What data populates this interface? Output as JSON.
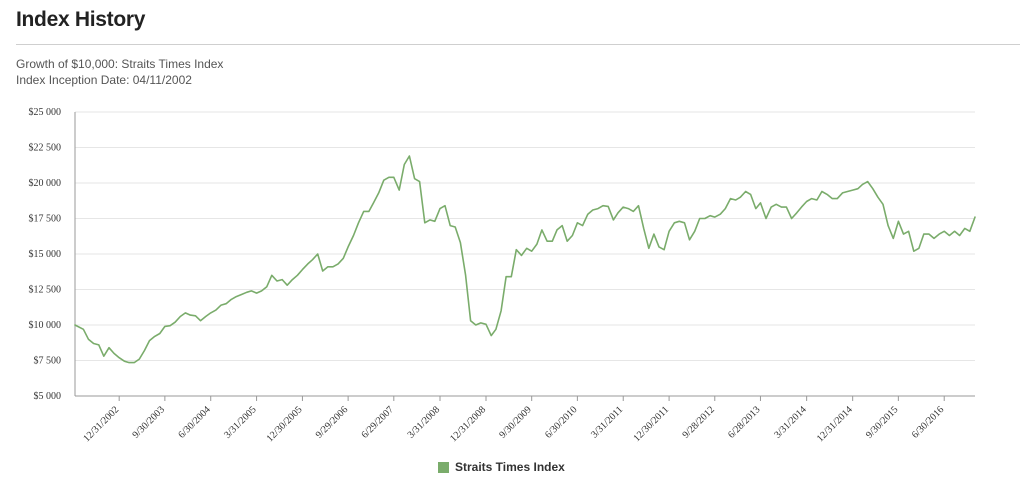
{
  "header": {
    "title": "Index History",
    "subtitle": "Growth of $10,000: Straits Times Index",
    "inception": "Index Inception Date: 04/11/2002"
  },
  "colors": {
    "series": "#7aac6b",
    "grid": "#e6e6e6",
    "axis": "#999999"
  },
  "chart_data": {
    "type": "line",
    "title": "",
    "xlabel": "",
    "ylabel": "",
    "ylim": [
      5000,
      25000
    ],
    "yticks": [
      5000,
      7500,
      10000,
      12500,
      15000,
      17500,
      20000,
      22500,
      25000
    ],
    "ytick_labels": [
      "$5 000",
      "$7 500",
      "$10 000",
      "$12 500",
      "$15 000",
      "$17 500",
      "$20 000",
      "$22 500",
      "$25 000"
    ],
    "xtick_labels": [
      "12/31/2002",
      "9/30/2003",
      "6/30/2004",
      "3/31/2005",
      "12/30/2005",
      "9/29/2006",
      "6/29/2007",
      "3/31/2008",
      "12/31/2008",
      "9/30/2009",
      "6/30/2010",
      "3/31/2011",
      "12/30/2011",
      "9/28/2012",
      "6/28/2013",
      "3/31/2014",
      "12/31/2014",
      "9/30/2015",
      "6/30/2016"
    ],
    "xtick_dates": [
      "2002-12-31",
      "2003-09-30",
      "2004-06-30",
      "2005-03-31",
      "2005-12-30",
      "2006-09-29",
      "2007-06-29",
      "2008-03-31",
      "2008-12-31",
      "2009-09-30",
      "2010-06-30",
      "2011-03-31",
      "2011-12-30",
      "2012-09-28",
      "2013-06-28",
      "2014-03-31",
      "2014-12-31",
      "2015-09-30",
      "2016-06-30"
    ],
    "grid": true,
    "legend": "bottom-center",
    "series": [
      {
        "name": "Straits Times Index",
        "points": [
          [
            "2002-04-11",
            10000
          ],
          [
            "2002-05-31",
            9700
          ],
          [
            "2002-06-30",
            9000
          ],
          [
            "2002-07-31",
            8700
          ],
          [
            "2002-08-31",
            8600
          ],
          [
            "2002-09-30",
            7800
          ],
          [
            "2002-10-31",
            8400
          ],
          [
            "2002-11-30",
            8000
          ],
          [
            "2002-12-31",
            7700
          ],
          [
            "2003-01-31",
            7450
          ],
          [
            "2003-02-28",
            7350
          ],
          [
            "2003-03-31",
            7350
          ],
          [
            "2003-04-30",
            7600
          ],
          [
            "2003-05-31",
            8200
          ],
          [
            "2003-06-30",
            8900
          ],
          [
            "2003-07-31",
            9200
          ],
          [
            "2003-08-31",
            9400
          ],
          [
            "2003-09-30",
            9900
          ],
          [
            "2003-10-31",
            9950
          ],
          [
            "2003-11-30",
            10200
          ],
          [
            "2003-12-31",
            10600
          ],
          [
            "2004-01-31",
            10850
          ],
          [
            "2004-02-29",
            10700
          ],
          [
            "2004-03-31",
            10650
          ],
          [
            "2004-04-30",
            10300
          ],
          [
            "2004-05-31",
            10600
          ],
          [
            "2004-06-30",
            10850
          ],
          [
            "2004-07-31",
            11050
          ],
          [
            "2004-08-31",
            11400
          ],
          [
            "2004-09-30",
            11500
          ],
          [
            "2004-10-31",
            11800
          ],
          [
            "2004-11-30",
            12000
          ],
          [
            "2004-12-31",
            12150
          ],
          [
            "2005-01-31",
            12300
          ],
          [
            "2005-02-28",
            12400
          ],
          [
            "2005-03-31",
            12250
          ],
          [
            "2005-04-30",
            12400
          ],
          [
            "2005-05-31",
            12700
          ],
          [
            "2005-06-30",
            13500
          ],
          [
            "2005-07-31",
            13100
          ],
          [
            "2005-08-31",
            13200
          ],
          [
            "2005-09-30",
            12800
          ],
          [
            "2005-10-31",
            13200
          ],
          [
            "2005-11-30",
            13500
          ],
          [
            "2005-12-30",
            13900
          ],
          [
            "2006-01-31",
            14300
          ],
          [
            "2006-02-28",
            14600
          ],
          [
            "2006-03-31",
            15000
          ],
          [
            "2006-04-30",
            13800
          ],
          [
            "2006-05-31",
            14100
          ],
          [
            "2006-06-30",
            14100
          ],
          [
            "2006-07-31",
            14300
          ],
          [
            "2006-08-31",
            14700
          ],
          [
            "2006-09-29",
            15500
          ],
          [
            "2006-10-31",
            16300
          ],
          [
            "2006-11-30",
            17200
          ],
          [
            "2006-12-31",
            18000
          ],
          [
            "2007-01-31",
            18000
          ],
          [
            "2007-02-28",
            18600
          ],
          [
            "2007-03-31",
            19300
          ],
          [
            "2007-04-30",
            20200
          ],
          [
            "2007-05-31",
            20400
          ],
          [
            "2007-06-29",
            20400
          ],
          [
            "2007-07-31",
            19500
          ],
          [
            "2007-08-31",
            21300
          ],
          [
            "2007-09-30",
            21900
          ],
          [
            "2007-10-31",
            20300
          ],
          [
            "2007-11-30",
            20100
          ],
          [
            "2007-12-31",
            17200
          ],
          [
            "2008-01-31",
            17400
          ],
          [
            "2008-02-29",
            17300
          ],
          [
            "2008-03-31",
            18200
          ],
          [
            "2008-04-30",
            18400
          ],
          [
            "2008-05-31",
            17000
          ],
          [
            "2008-06-30",
            16900
          ],
          [
            "2008-07-31",
            15800
          ],
          [
            "2008-08-31",
            13500
          ],
          [
            "2008-09-30",
            10300
          ],
          [
            "2008-10-31",
            10000
          ],
          [
            "2008-11-30",
            10150
          ],
          [
            "2008-12-31",
            10050
          ],
          [
            "2009-01-31",
            9250
          ],
          [
            "2009-02-28",
            9700
          ],
          [
            "2009-03-31",
            11000
          ],
          [
            "2009-04-30",
            13400
          ],
          [
            "2009-05-31",
            13400
          ],
          [
            "2009-06-30",
            15300
          ],
          [
            "2009-07-31",
            14900
          ],
          [
            "2009-08-31",
            15400
          ],
          [
            "2009-09-30",
            15200
          ],
          [
            "2009-10-31",
            15700
          ],
          [
            "2009-11-30",
            16700
          ],
          [
            "2009-12-31",
            15900
          ],
          [
            "2010-01-31",
            15900
          ],
          [
            "2010-02-28",
            16700
          ],
          [
            "2010-03-31",
            17000
          ],
          [
            "2010-04-30",
            15900
          ],
          [
            "2010-05-31",
            16300
          ],
          [
            "2010-06-30",
            17200
          ],
          [
            "2010-07-31",
            17000
          ],
          [
            "2010-08-31",
            17800
          ],
          [
            "2010-09-30",
            18100
          ],
          [
            "2010-10-31",
            18200
          ],
          [
            "2010-11-30",
            18400
          ],
          [
            "2010-12-31",
            18350
          ],
          [
            "2011-01-31",
            17400
          ],
          [
            "2011-02-28",
            17900
          ],
          [
            "2011-03-31",
            18300
          ],
          [
            "2011-04-30",
            18200
          ],
          [
            "2011-05-31",
            18000
          ],
          [
            "2011-06-30",
            18400
          ],
          [
            "2011-07-31",
            16800
          ],
          [
            "2011-08-31",
            15400
          ],
          [
            "2011-09-30",
            16400
          ],
          [
            "2011-10-31",
            15500
          ],
          [
            "2011-11-30",
            15300
          ],
          [
            "2011-12-30",
            16600
          ],
          [
            "2012-01-31",
            17200
          ],
          [
            "2012-02-29",
            17300
          ],
          [
            "2012-03-31",
            17200
          ],
          [
            "2012-04-30",
            16000
          ],
          [
            "2012-05-31",
            16600
          ],
          [
            "2012-06-30",
            17500
          ],
          [
            "2012-07-31",
            17500
          ],
          [
            "2012-08-31",
            17700
          ],
          [
            "2012-09-28",
            17600
          ],
          [
            "2012-10-31",
            17800
          ],
          [
            "2012-11-30",
            18200
          ],
          [
            "2012-12-31",
            18900
          ],
          [
            "2013-01-31",
            18800
          ],
          [
            "2013-02-28",
            19000
          ],
          [
            "2013-03-31",
            19400
          ],
          [
            "2013-04-30",
            19200
          ],
          [
            "2013-05-31",
            18200
          ],
          [
            "2013-06-28",
            18600
          ],
          [
            "2013-07-31",
            17500
          ],
          [
            "2013-08-31",
            18300
          ],
          [
            "2013-09-30",
            18500
          ],
          [
            "2013-10-31",
            18300
          ],
          [
            "2013-11-30",
            18300
          ],
          [
            "2013-12-31",
            17500
          ],
          [
            "2014-01-31",
            17900
          ],
          [
            "2014-02-28",
            18300
          ],
          [
            "2014-03-31",
            18700
          ],
          [
            "2014-04-30",
            18900
          ],
          [
            "2014-05-31",
            18800
          ],
          [
            "2014-06-30",
            19400
          ],
          [
            "2014-07-31",
            19200
          ],
          [
            "2014-08-31",
            18900
          ],
          [
            "2014-09-30",
            18900
          ],
          [
            "2014-10-31",
            19300
          ],
          [
            "2014-11-30",
            19400
          ],
          [
            "2014-12-31",
            19500
          ],
          [
            "2015-01-31",
            19600
          ],
          [
            "2015-02-28",
            19900
          ],
          [
            "2015-03-31",
            20100
          ],
          [
            "2015-04-30",
            19600
          ],
          [
            "2015-05-31",
            19000
          ],
          [
            "2015-06-30",
            18500
          ],
          [
            "2015-07-31",
            17000
          ],
          [
            "2015-08-31",
            16100
          ],
          [
            "2015-09-30",
            17300
          ],
          [
            "2015-10-31",
            16400
          ],
          [
            "2015-11-30",
            16600
          ],
          [
            "2015-12-31",
            15200
          ],
          [
            "2016-01-31",
            15400
          ],
          [
            "2016-02-29",
            16400
          ],
          [
            "2016-03-31",
            16400
          ],
          [
            "2016-04-30",
            16100
          ],
          [
            "2016-05-31",
            16400
          ],
          [
            "2016-06-30",
            16600
          ],
          [
            "2016-07-31",
            16300
          ],
          [
            "2016-08-31",
            16600
          ],
          [
            "2016-09-30",
            16300
          ],
          [
            "2016-10-31",
            16800
          ],
          [
            "2016-11-30",
            16600
          ],
          [
            "2016-12-31",
            17600
          ]
        ]
      }
    ]
  }
}
